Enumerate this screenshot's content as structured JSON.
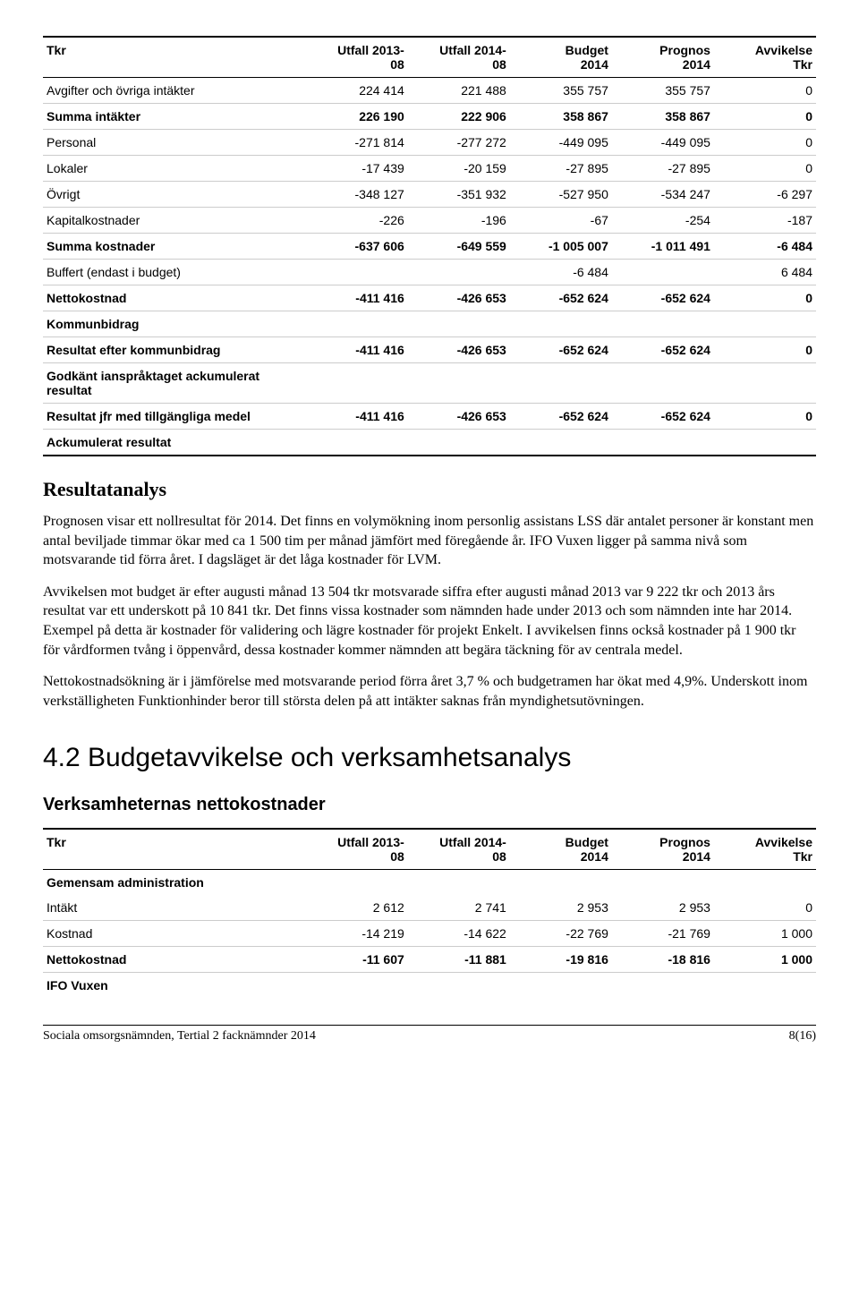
{
  "table1": {
    "headers": [
      "Tkr",
      "Utfall 2013-\n08",
      "Utfall 2014-\n08",
      "Budget\n2014",
      "Prognos\n2014",
      "Avvikelse\nTkr"
    ],
    "rows": [
      {
        "label": "Avgifter och övriga intäkter",
        "v": [
          "224 414",
          "221 488",
          "355 757",
          "355 757",
          "0"
        ],
        "bold": false
      },
      {
        "label": "Summa intäkter",
        "v": [
          "226 190",
          "222 906",
          "358 867",
          "358 867",
          "0"
        ],
        "bold": true
      },
      {
        "label": "Personal",
        "v": [
          "-271 814",
          "-277 272",
          "-449 095",
          "-449 095",
          "0"
        ],
        "bold": false
      },
      {
        "label": "Lokaler",
        "v": [
          "-17 439",
          "-20 159",
          "-27 895",
          "-27 895",
          "0"
        ],
        "bold": false
      },
      {
        "label": "Övrigt",
        "v": [
          "-348 127",
          "-351 932",
          "-527 950",
          "-534 247",
          "-6 297"
        ],
        "bold": false
      },
      {
        "label": "Kapitalkostnader",
        "v": [
          "-226",
          "-196",
          "-67",
          "-254",
          "-187"
        ],
        "bold": false
      },
      {
        "label": "Summa kostnader",
        "v": [
          "-637 606",
          "-649 559",
          "-1 005 007",
          "-1 011 491",
          "-6 484"
        ],
        "bold": true
      },
      {
        "label": "Buffert (endast i budget)",
        "v": [
          "",
          "",
          "-6 484",
          "",
          "6 484"
        ],
        "bold": false
      },
      {
        "label": "Nettokostnad",
        "v": [
          "-411 416",
          "-426 653",
          "-652 624",
          "-652 624",
          "0"
        ],
        "bold": true
      },
      {
        "label": "Kommunbidrag",
        "v": [
          "",
          "",
          "",
          "",
          ""
        ],
        "bold": true,
        "noborder": false
      },
      {
        "label": "Resultat efter kommunbidrag",
        "v": [
          "-411 416",
          "-426 653",
          "-652 624",
          "-652 624",
          "0"
        ],
        "bold": true
      },
      {
        "label": "Godkänt ianspråktaget ackumulerat resultat",
        "v": [
          "",
          "",
          "",
          "",
          ""
        ],
        "bold": true
      },
      {
        "label": "Resultat jfr med tillgängliga medel",
        "v": [
          "-411 416",
          "-426 653",
          "-652 624",
          "-652 624",
          "0"
        ],
        "bold": true
      },
      {
        "label": "Ackumulerat resultat",
        "v": [
          "",
          "",
          "",
          "",
          ""
        ],
        "bold": true,
        "last": true
      }
    ]
  },
  "analysis": {
    "heading": "Resultatanalys",
    "p1": "Prognosen visar ett nollresultat för 2014. Det finns en volymökning inom personlig assistans LSS där antalet personer är konstant men antal beviljade timmar ökar med ca 1 500 tim per månad jämfört med föregående år. IFO Vuxen ligger på samma nivå som motsvarande tid förra året. I dagsläget är det låga kostnader för LVM.",
    "p2": "Avvikelsen mot budget är efter augusti månad 13 504 tkr motsvarade siffra efter augusti månad 2013 var 9 222 tkr och 2013 års resultat var ett underskott på 10 841 tkr. Det finns vissa kostnader som nämnden hade under 2013 och som nämnden inte har 2014. Exempel på detta är kostnader för validering och lägre kostnader för projekt Enkelt. I avvikelsen finns också kostnader på 1 900 tkr för vårdformen tvång i öppenvård, dessa kostnader kommer nämnden att begära täckning för av centrala medel.",
    "p3": "Nettokostnadsökning är i jämförelse med motsvarande period förra året 3,7 % och budgetramen har ökat med 4,9%. Underskott inom verkställigheten Funktionhinder beror till största delen på att intäkter saknas från myndighetsutövningen."
  },
  "section42": {
    "title": "4.2 Budgetavvikelse och verksamhetsanalys",
    "subhead": "Verksamheternas nettokostnader"
  },
  "table2": {
    "headers": [
      "Tkr",
      "Utfall 2013-\n08",
      "Utfall 2014-\n08",
      "Budget\n2014",
      "Prognos\n2014",
      "Avvikelse\nTkr"
    ],
    "rows": [
      {
        "label": "Gemensam administration",
        "v": [
          "",
          "",
          "",
          "",
          ""
        ],
        "bold": true,
        "noborder": true
      },
      {
        "label": "Intäkt",
        "v": [
          "2 612",
          "2 741",
          "2 953",
          "2 953",
          "0"
        ],
        "bold": false
      },
      {
        "label": "Kostnad",
        "v": [
          "-14 219",
          "-14 622",
          "-22 769",
          "-21 769",
          "1 000"
        ],
        "bold": false
      },
      {
        "label": "Nettokostnad",
        "v": [
          "-11 607",
          "-11 881",
          "-19 816",
          "-18 816",
          "1 000"
        ],
        "bold": true
      },
      {
        "label": "IFO Vuxen",
        "v": [
          "",
          "",
          "",
          "",
          ""
        ],
        "bold": true,
        "noborder": true
      }
    ]
  },
  "footer": {
    "left": "Sociala omsorgsnämnden, Tertial 2 facknämnder 2014",
    "right": "8(16)"
  }
}
